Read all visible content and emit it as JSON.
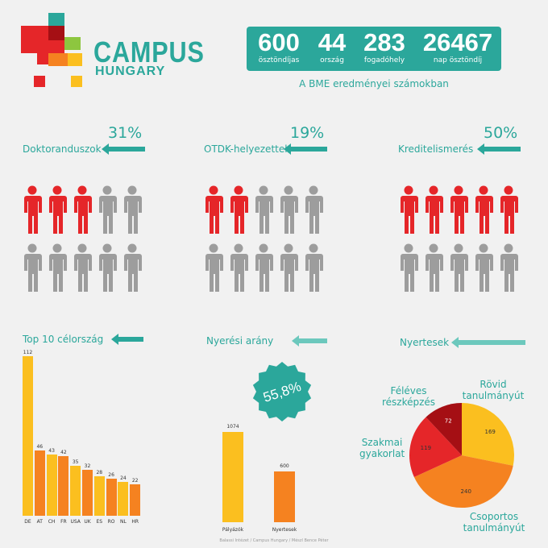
{
  "header": {
    "brand": "CAMPUS",
    "brand_sub": "HUNGARY",
    "stats": [
      {
        "value": "600",
        "label": "ösztöndíjas"
      },
      {
        "value": "44",
        "label": "ország"
      },
      {
        "value": "283",
        "label": "fogadóhely"
      },
      {
        "value": "26467",
        "label": "nap ösztöndíj"
      }
    ],
    "subtitle": "A BME eredményei számokban",
    "colors": {
      "teal": "#2ba79b",
      "red": "#e52629",
      "orange": "#f58220",
      "yellow": "#fbbf1f",
      "green": "#8dc63f"
    }
  },
  "sections": {
    "doktor": {
      "label": "Doktoranduszok",
      "pct": "31%",
      "highlighted": 3,
      "total": 10
    },
    "otdk": {
      "label": "OTDK-helyezettek",
      "pct": "19%",
      "highlighted": 2,
      "total": 10
    },
    "kredit": {
      "label": "Kreditelismerés",
      "pct": "50%",
      "highlighted": 5,
      "total": 10
    },
    "top10": {
      "label": "Top 10 célország"
    },
    "nyeresi": {
      "label": "Nyerési arány",
      "badge": "55,8%"
    },
    "nyertesek": {
      "label": "Nyertesek"
    }
  },
  "chart_data": [
    {
      "type": "bar",
      "title": "Top 10 célország",
      "categories": [
        "DE",
        "AT",
        "CH",
        "FR",
        "USA",
        "UK",
        "ES",
        "RO",
        "NL",
        "HR"
      ],
      "values": [
        112,
        46,
        43,
        42,
        35,
        32,
        28,
        26,
        24,
        22
      ],
      "colors": [
        "#fbbf1f",
        "#f58220",
        "#fbbf1f",
        "#f58220",
        "#fbbf1f",
        "#f58220",
        "#fbbf1f",
        "#f58220",
        "#fbbf1f",
        "#f58220"
      ]
    },
    {
      "type": "bar",
      "title": "Nyerési arány",
      "categories": [
        "Pályázók",
        "Nyertesek"
      ],
      "values": [
        1074,
        600
      ],
      "colors": [
        "#fbbf1f",
        "#f58220"
      ]
    },
    {
      "type": "pie",
      "title": "Nyertesek",
      "categories": [
        "Rövid tanulmányút",
        "Csoportos tanulmányút",
        "Szakmai gyakorlat",
        "Féléves részképzés"
      ],
      "values": [
        169,
        240,
        119,
        72
      ],
      "colors": [
        "#fbbf1f",
        "#f58220",
        "#e52629",
        "#a50f14"
      ]
    }
  ],
  "footer": "Balassi Intézet / Campus Hungary / Mészl Bence Péter"
}
